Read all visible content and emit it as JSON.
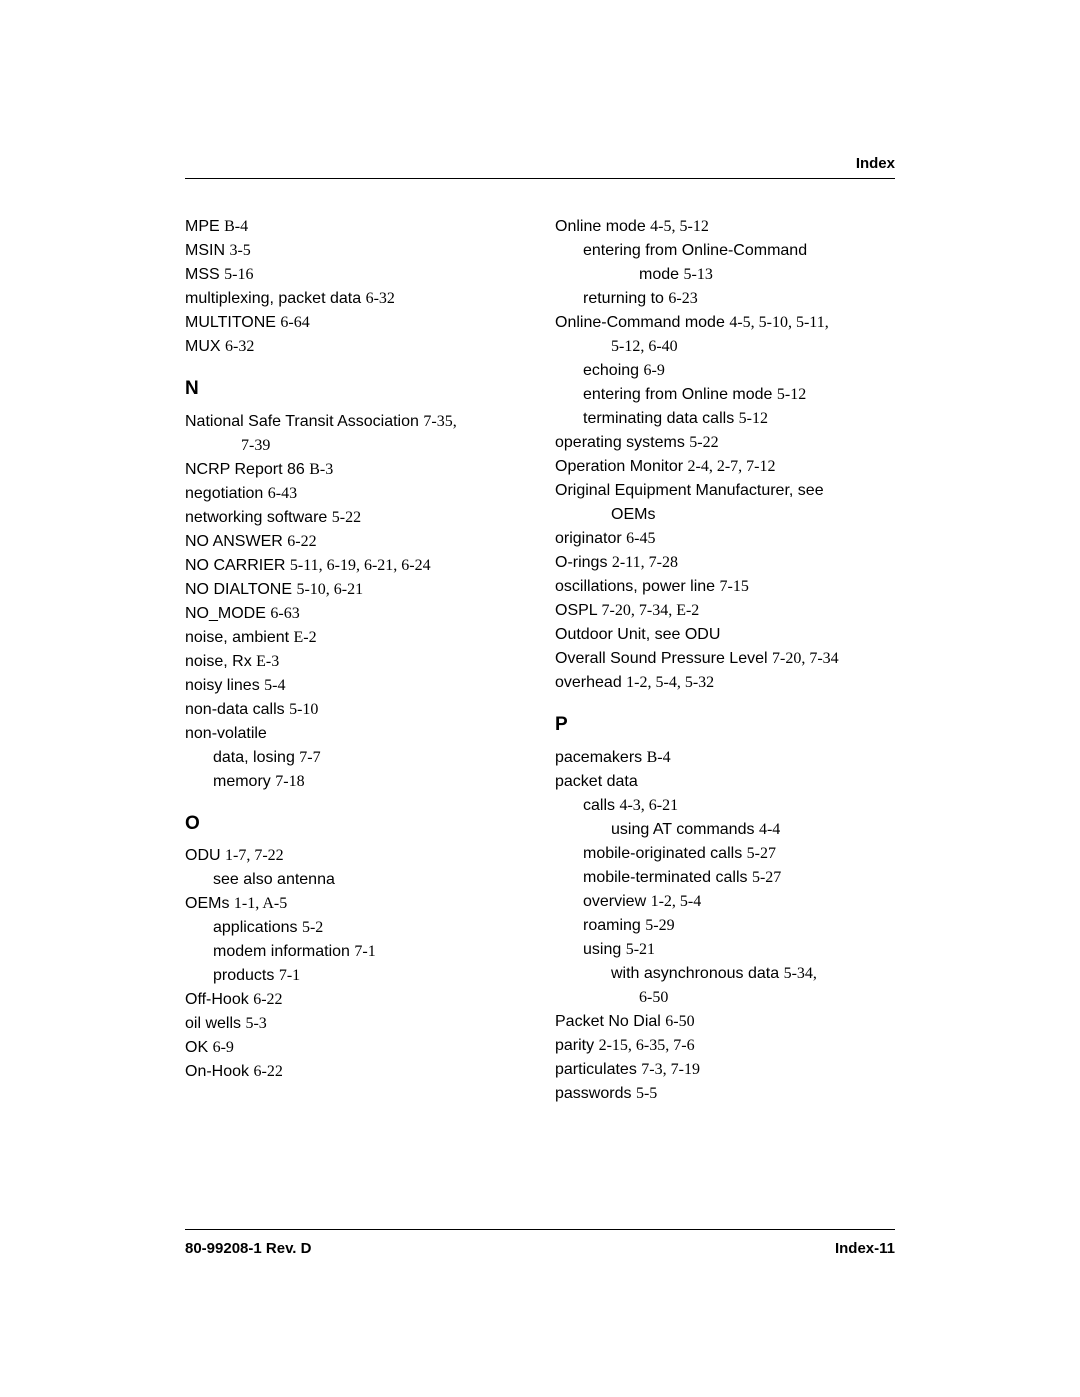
{
  "header": "Index",
  "footer_left": "80-99208-1 Rev. D",
  "footer_right": "Index-11",
  "left_col": [
    {
      "t": "MPE",
      "p": "B-4"
    },
    {
      "t": "MSIN",
      "p": "3-5"
    },
    {
      "t": "MSS",
      "p": "5-16"
    },
    {
      "t": "multiplexing, packet data",
      "p": "6-32"
    },
    {
      "t": "MULTITONE",
      "p": "6-64"
    },
    {
      "t": "MUX",
      "p": "6-32"
    },
    {
      "sec": "N"
    },
    {
      "t": "National Safe Transit Association",
      "p": "7-35,"
    },
    {
      "cont": "7-39",
      "ind": 2
    },
    {
      "t": "NCRP Report 86",
      "p": "B-3"
    },
    {
      "t": "negotiation",
      "p": "6-43"
    },
    {
      "t": "networking software",
      "p": "5-22"
    },
    {
      "t": "NO ANSWER",
      "p": "6-22"
    },
    {
      "t": "NO CARRIER",
      "p": "5-11, 6-19, 6-21, 6-24"
    },
    {
      "t": "NO DIALTONE",
      "p": "5-10, 6-21"
    },
    {
      "t": "NO_MODE",
      "p": "6-63"
    },
    {
      "t": "noise, ambient",
      "p": "E-2"
    },
    {
      "t": "noise, Rx",
      "p": "E-3"
    },
    {
      "t": "noisy lines",
      "p": "5-4"
    },
    {
      "t": "non-data calls",
      "p": "5-10"
    },
    {
      "t": "non-volatile",
      "p": ""
    },
    {
      "t": "data, losing",
      "p": "7-7",
      "ind": 1
    },
    {
      "t": "memory",
      "p": "7-18",
      "ind": 1
    },
    {
      "sec": "O"
    },
    {
      "t": "ODU",
      "p": "1-7, 7-22"
    },
    {
      "t": "see also antenna",
      "p": "",
      "ind": 1
    },
    {
      "t": "OEMs",
      "p": "1-1, A-5"
    },
    {
      "t": "applications",
      "p": "5-2",
      "ind": 1
    },
    {
      "t": "modem information",
      "p": "7-1",
      "ind": 1
    },
    {
      "t": "products",
      "p": "7-1",
      "ind": 1
    },
    {
      "t": "Off-Hook",
      "p": "6-22"
    },
    {
      "t": "oil wells",
      "p": "5-3"
    },
    {
      "t": "OK",
      "p": "6-9"
    },
    {
      "t": "On-Hook",
      "p": "6-22"
    }
  ],
  "right_col": [
    {
      "t": "Online mode",
      "p": "4-5, 5-12"
    },
    {
      "t": "entering from Online-Command",
      "p": "",
      "ind": 1
    },
    {
      "t": "mode",
      "p": "5-13",
      "ind": 3
    },
    {
      "t": "returning to",
      "p": "6-23",
      "ind": 1
    },
    {
      "t": "Online-Command mode",
      "p": "4-5, 5-10, 5-11,"
    },
    {
      "cont": "5-12, 6-40",
      "ind": 2
    },
    {
      "t": "echoing",
      "p": "6-9",
      "ind": 1
    },
    {
      "t": "entering from Online mode",
      "p": "5-12",
      "ind": 1
    },
    {
      "t": "terminating data calls",
      "p": "5-12",
      "ind": 1
    },
    {
      "t": "operating systems",
      "p": "5-22"
    },
    {
      "t": "Operation Monitor",
      "p": "2-4, 2-7, 7-12"
    },
    {
      "t": "Original Equipment Manufacturer, see",
      "p": ""
    },
    {
      "t": "OEMs",
      "p": "",
      "ind": 2
    },
    {
      "t": "originator",
      "p": "6-45"
    },
    {
      "t": "O-rings",
      "p": "2-11, 7-28"
    },
    {
      "t": "oscillations, power line",
      "p": "7-15"
    },
    {
      "t": "OSPL",
      "p": "7-20, 7-34, E-2"
    },
    {
      "t": "Outdoor Unit, see ODU",
      "p": ""
    },
    {
      "t": "Overall Sound Pressure Level",
      "p": "7-20, 7-34"
    },
    {
      "t": "overhead",
      "p": "1-2, 5-4, 5-32"
    },
    {
      "sec": "P"
    },
    {
      "t": "pacemakers",
      "p": "B-4"
    },
    {
      "t": "packet data",
      "p": ""
    },
    {
      "t": "calls",
      "p": "4-3, 6-21",
      "ind": 1
    },
    {
      "t": "using AT commands",
      "p": "4-4",
      "ind": 2
    },
    {
      "t": "mobile-originated calls",
      "p": "5-27",
      "ind": 1
    },
    {
      "t": "mobile-terminated calls",
      "p": "5-27",
      "ind": 1
    },
    {
      "t": "overview",
      "p": "1-2, 5-4",
      "ind": 1
    },
    {
      "t": "roaming",
      "p": "5-29",
      "ind": 1
    },
    {
      "t": "using",
      "p": "5-21",
      "ind": 1
    },
    {
      "t": "with asynchronous data",
      "p": "5-34,",
      "ind": 2
    },
    {
      "cont": "6-50",
      "ind": 3
    },
    {
      "t": "Packet No Dial",
      "p": "6-50"
    },
    {
      "t": "parity",
      "p": "2-15, 6-35, 7-6"
    },
    {
      "t": "particulates",
      "p": "7-3, 7-19"
    },
    {
      "t": "passwords",
      "p": "5-5"
    }
  ]
}
